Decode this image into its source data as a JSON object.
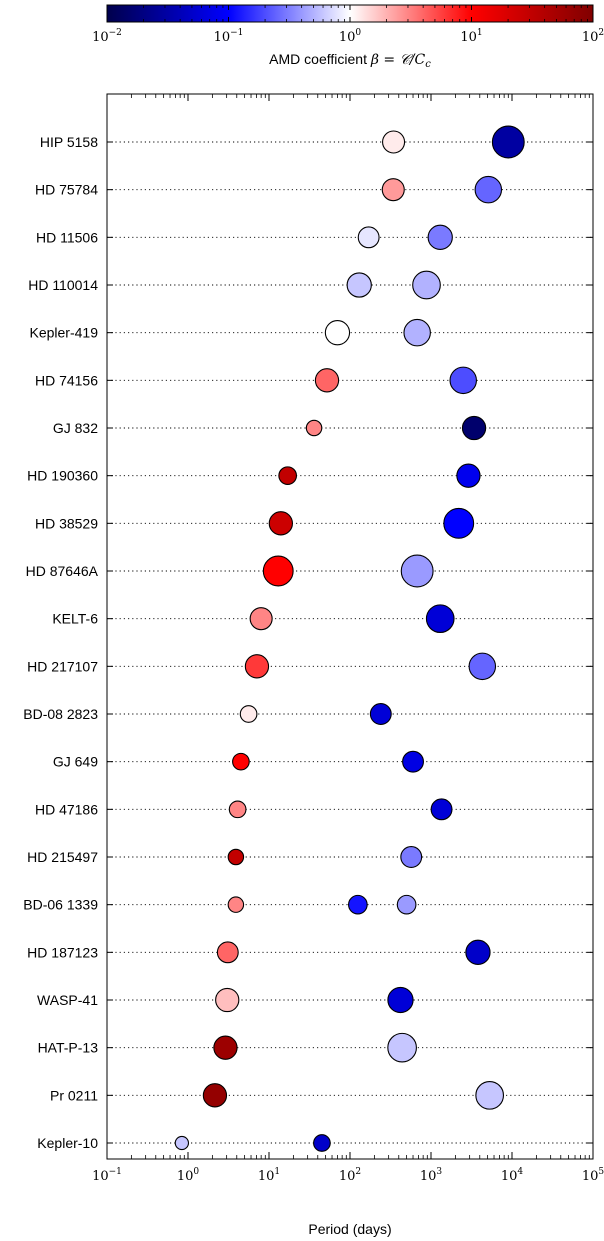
{
  "chart_data": {
    "type": "scatter",
    "xlabel": "Period (days)",
    "x_scale": "log",
    "xlim": [
      0.1,
      100000
    ],
    "x_ticks": [
      {
        "value": 0.1,
        "base": "10",
        "exp": "−1"
      },
      {
        "value": 1,
        "base": "10",
        "exp": "0"
      },
      {
        "value": 10,
        "base": "10",
        "exp": "1"
      },
      {
        "value": 100,
        "base": "10",
        "exp": "2"
      },
      {
        "value": 1000,
        "base": "10",
        "exp": "3"
      },
      {
        "value": 10000,
        "base": "10",
        "exp": "4"
      },
      {
        "value": 100000,
        "base": "10",
        "exp": "5"
      }
    ],
    "grid": "dotted horizontal line per system",
    "colorbar": {
      "label_plain": "AMD coefficient ",
      "label_math": "β = 𝒞/C",
      "label_sub": "c",
      "scale": "log",
      "range": [
        0.01,
        100
      ],
      "colormap": "seismic",
      "ticks": [
        {
          "value": 0.01,
          "base": "10",
          "exp": "−2"
        },
        {
          "value": 0.1,
          "base": "10",
          "exp": "−1"
        },
        {
          "value": 1,
          "base": "10",
          "exp": "0"
        },
        {
          "value": 10,
          "base": "10",
          "exp": "1"
        },
        {
          "value": 100,
          "base": "10",
          "exp": "2"
        }
      ]
    },
    "systems": [
      {
        "name": "HIP 5158",
        "planets": [
          {
            "period": 345,
            "beta": 1.2,
            "size": 1.0
          },
          {
            "period": 9000,
            "beta": 0.03,
            "size": 1.45
          }
        ]
      },
      {
        "name": "HD 75784",
        "planets": [
          {
            "period": 342,
            "beta": 2.5,
            "size": 1.0
          },
          {
            "period": 5100,
            "beta": 0.25,
            "size": 1.2
          }
        ]
      },
      {
        "name": "HD 11506",
        "planets": [
          {
            "period": 170,
            "beta": 0.8,
            "size": 0.95
          },
          {
            "period": 1300,
            "beta": 0.3,
            "size": 1.1
          }
        ]
      },
      {
        "name": "HD 110014",
        "planets": [
          {
            "period": 130,
            "beta": 0.6,
            "size": 1.1
          },
          {
            "period": 880,
            "beta": 0.5,
            "size": 1.25
          }
        ]
      },
      {
        "name": "Kepler-419",
        "planets": [
          {
            "period": 70,
            "beta": 1.0,
            "size": 1.1
          },
          {
            "period": 675,
            "beta": 0.5,
            "size": 1.2
          }
        ]
      },
      {
        "name": "HD 74156",
        "planets": [
          {
            "period": 52,
            "beta": 4.0,
            "size": 1.05
          },
          {
            "period": 2500,
            "beta": 0.2,
            "size": 1.2
          }
        ]
      },
      {
        "name": "GJ 832",
        "planets": [
          {
            "period": 36,
            "beta": 3.0,
            "size": 0.7
          },
          {
            "period": 3400,
            "beta": 0.015,
            "size": 1.05
          }
        ]
      },
      {
        "name": "HD 190360",
        "planets": [
          {
            "period": 17,
            "beta": 30,
            "size": 0.8
          },
          {
            "period": 2900,
            "beta": 0.08,
            "size": 1.05
          }
        ]
      },
      {
        "name": "HD 38529",
        "planets": [
          {
            "period": 14,
            "beta": 25,
            "size": 1.05
          },
          {
            "period": 2200,
            "beta": 0.1,
            "size": 1.35
          }
        ]
      },
      {
        "name": "HD 87646A",
        "planets": [
          {
            "period": 13,
            "beta": 10,
            "size": 1.35
          },
          {
            "period": 675,
            "beta": 0.4,
            "size": 1.45
          }
        ]
      },
      {
        "name": "KELT-6",
        "planets": [
          {
            "period": 8,
            "beta": 3.0,
            "size": 1.0
          },
          {
            "period": 1300,
            "beta": 0.06,
            "size": 1.25
          }
        ]
      },
      {
        "name": "HD 217107",
        "planets": [
          {
            "period": 7.1,
            "beta": 6.0,
            "size": 1.05
          },
          {
            "period": 4300,
            "beta": 0.25,
            "size": 1.2
          }
        ]
      },
      {
        "name": "BD-08 2823",
        "planets": [
          {
            "period": 5.6,
            "beta": 1.2,
            "size": 0.75
          },
          {
            "period": 240,
            "beta": 0.06,
            "size": 0.95
          }
        ]
      },
      {
        "name": "GJ 649",
        "planets": [
          {
            "period": 4.5,
            "beta": 10,
            "size": 0.75
          },
          {
            "period": 600,
            "beta": 0.07,
            "size": 0.95
          }
        ]
      },
      {
        "name": "HD 47186",
        "planets": [
          {
            "period": 4.1,
            "beta": 3.0,
            "size": 0.75
          },
          {
            "period": 1350,
            "beta": 0.06,
            "size": 0.95
          }
        ]
      },
      {
        "name": "HD 215497",
        "planets": [
          {
            "period": 3.9,
            "beta": 30,
            "size": 0.7
          },
          {
            "period": 570,
            "beta": 0.3,
            "size": 0.95
          }
        ]
      },
      {
        "name": "BD-06 1339",
        "planets": [
          {
            "period": 3.9,
            "beta": 3.0,
            "size": 0.7
          },
          {
            "period": 125,
            "beta": 0.12,
            "size": 0.85
          },
          {
            "period": 500,
            "beta": 0.4,
            "size": 0.85
          }
        ]
      },
      {
        "name": "HD 187123",
        "planets": [
          {
            "period": 3.1,
            "beta": 4.0,
            "size": 0.95
          },
          {
            "period": 3800,
            "beta": 0.05,
            "size": 1.1
          }
        ]
      },
      {
        "name": "WASP-41",
        "planets": [
          {
            "period": 3.05,
            "beta": 1.8,
            "size": 1.05
          },
          {
            "period": 420,
            "beta": 0.06,
            "size": 1.15
          }
        ]
      },
      {
        "name": "HAT-P-13",
        "planets": [
          {
            "period": 2.9,
            "beta": 60,
            "size": 1.05
          },
          {
            "period": 440,
            "beta": 0.6,
            "size": 1.3
          }
        ]
      },
      {
        "name": "Pr 0211",
        "planets": [
          {
            "period": 2.15,
            "beta": 70,
            "size": 1.05
          },
          {
            "period": 5300,
            "beta": 0.6,
            "size": 1.25
          }
        ]
      },
      {
        "name": "Kepler-10",
        "planets": [
          {
            "period": 0.84,
            "beta": 0.6,
            "size": 0.6
          },
          {
            "period": 45,
            "beta": 0.05,
            "size": 0.75
          }
        ]
      }
    ]
  }
}
